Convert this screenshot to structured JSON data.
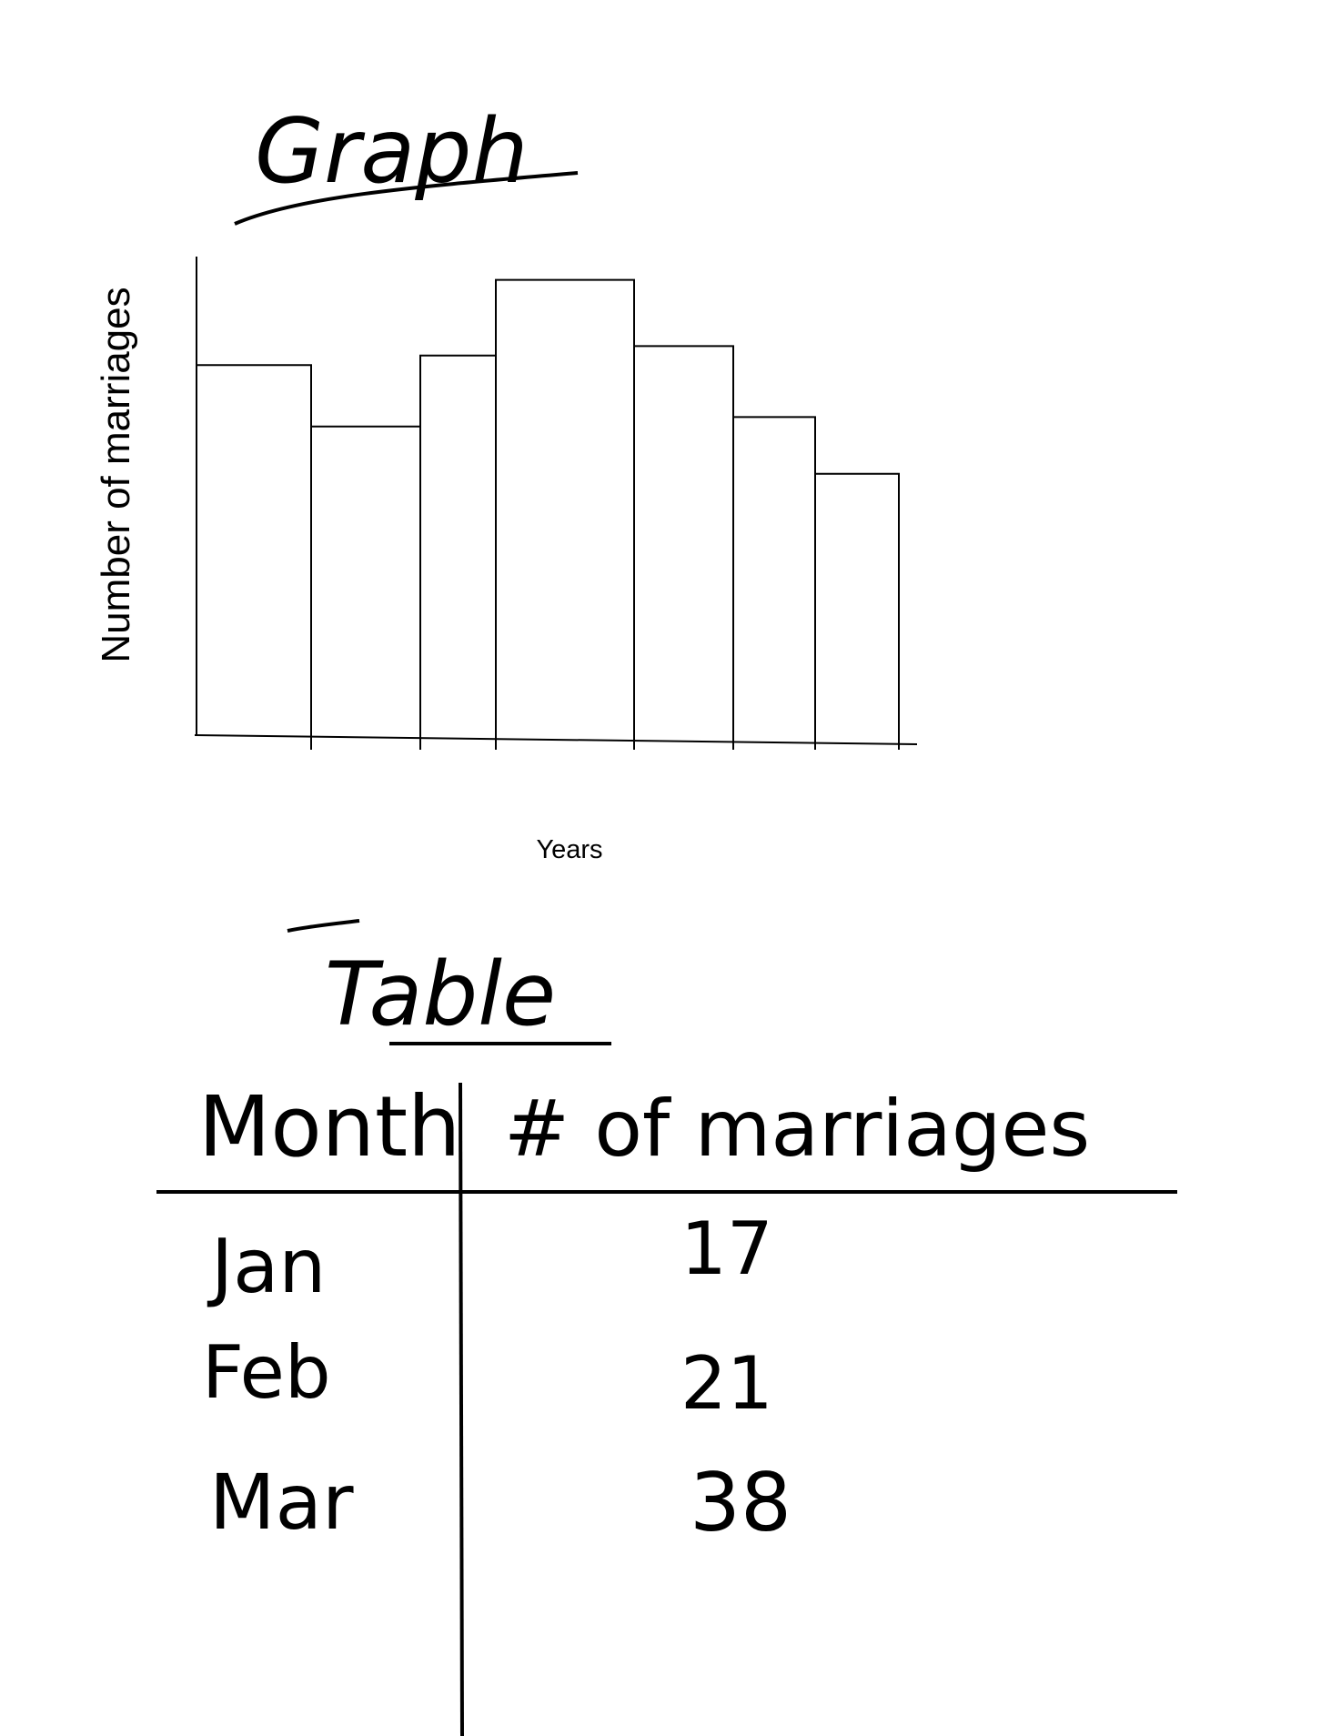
{
  "graph": {
    "heading": "Graph",
    "ylabel": "Number of marriages",
    "xlabel": "Years"
  },
  "chart_data": {
    "type": "bar",
    "title": "Graph",
    "xlabel": "Years",
    "ylabel": "Number of marriages",
    "categories": [
      "",
      "",
      "",
      "",
      "",
      "",
      ""
    ],
    "values": [
      79,
      66,
      81,
      97,
      83,
      68,
      56
    ],
    "grid": false,
    "legend": "none"
  },
  "table": {
    "heading": "Table",
    "columns": [
      "Month",
      "# of marriages"
    ],
    "rows": [
      {
        "month": "Jan",
        "count": "17"
      },
      {
        "month": "Feb",
        "count": "21"
      },
      {
        "month": "Mar",
        "count": "38"
      }
    ]
  }
}
